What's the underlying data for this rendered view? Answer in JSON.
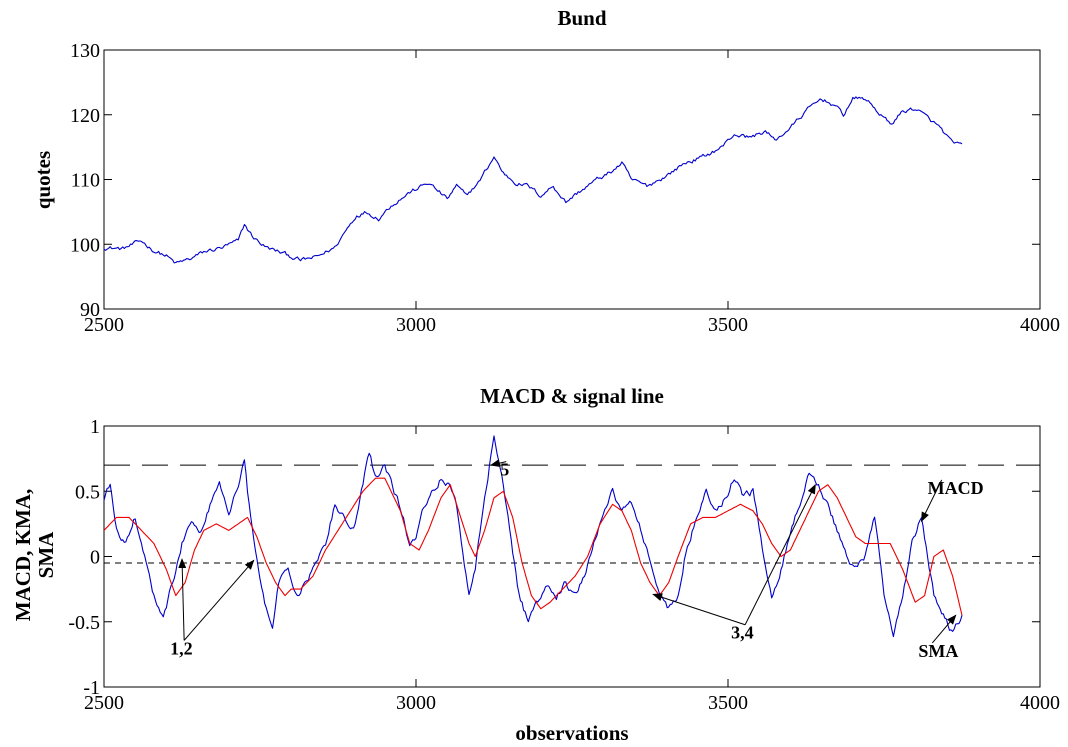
{
  "chart_data": [
    {
      "type": "line",
      "title": "Bund",
      "xlabel": "",
      "ylabel": "quotes",
      "xlim": [
        2500,
        4000
      ],
      "ylim": [
        90,
        130
      ],
      "xticks": [
        2500,
        3000,
        3500,
        4000
      ],
      "yticks": [
        90,
        100,
        110,
        120,
        130
      ],
      "grid": false,
      "series": [
        {
          "color": "#0000cc",
          "x": [
            2500,
            2530,
            2560,
            2580,
            2600,
            2615,
            2640,
            2660,
            2690,
            2715,
            2725,
            2740,
            2760,
            2790,
            2815,
            2840,
            2870,
            2890,
            2905,
            2920,
            2940,
            2960,
            2990,
            3020,
            3050,
            3065,
            3080,
            3100,
            3125,
            3140,
            3160,
            3180,
            3200,
            3220,
            3240,
            3260,
            3290,
            3310,
            3330,
            3345,
            3370,
            3400,
            3430,
            3460,
            3490,
            3510,
            3535,
            3560,
            3575,
            3600,
            3630,
            3650,
            3670,
            3685,
            3700,
            3720,
            3740,
            3760,
            3780,
            3800,
            3820,
            3840,
            3860,
            3875
          ],
          "y": [
            99.5,
            99.3,
            100.5,
            99.0,
            98.2,
            97.0,
            97.8,
            98.8,
            99.5,
            100.5,
            103.0,
            101.0,
            99.5,
            98.5,
            97.5,
            98.0,
            99.5,
            102.5,
            104.5,
            105.0,
            104.0,
            106.0,
            108.0,
            109.5,
            107.0,
            109.0,
            107.5,
            109.5,
            113.5,
            111.0,
            109.5,
            109.0,
            107.5,
            109.0,
            106.5,
            108.0,
            110.0,
            111.0,
            112.5,
            110.0,
            109.0,
            110.5,
            112.5,
            113.5,
            115.0,
            117.0,
            116.5,
            117.5,
            116.0,
            118.0,
            121.0,
            122.5,
            121.5,
            120.0,
            122.5,
            122.5,
            120.5,
            118.5,
            120.5,
            121.0,
            119.5,
            118.0,
            115.5,
            115.5
          ]
        }
      ]
    },
    {
      "type": "line",
      "title": "MACD & signal line",
      "xlabel": "observations",
      "ylabel": "MACD, KMA,\nSMA",
      "xlim": [
        2500,
        4000
      ],
      "ylim": [
        -1,
        1
      ],
      "xticks": [
        2500,
        3000,
        3500,
        4000
      ],
      "yticks": [
        -1,
        -0.5,
        0,
        0.5,
        1
      ],
      "ytick_labels": [
        "-1",
        "-0.5",
        "0",
        "0.5",
        "1"
      ],
      "grid": false,
      "series": [
        {
          "name": "MACD",
          "color": "#0000cc",
          "x": [
            2500,
            2510,
            2520,
            2535,
            2550,
            2565,
            2580,
            2595,
            2610,
            2625,
            2640,
            2655,
            2670,
            2685,
            2700,
            2715,
            2725,
            2730,
            2740,
            2750,
            2760,
            2770,
            2780,
            2795,
            2810,
            2825,
            2840,
            2855,
            2870,
            2885,
            2900,
            2915,
            2925,
            2935,
            2950,
            2965,
            2980,
            2990,
            3000,
            3010,
            3025,
            3040,
            3055,
            3065,
            3075,
            3085,
            3095,
            3105,
            3115,
            3125,
            3135,
            3150,
            3165,
            3180,
            3195,
            3210,
            3225,
            3240,
            3255,
            3270,
            3285,
            3300,
            3315,
            3330,
            3345,
            3360,
            3375,
            3390,
            3405,
            3420,
            3435,
            3450,
            3465,
            3480,
            3495,
            3510,
            3525,
            3540,
            3550,
            3560,
            3570,
            3585,
            3600,
            3615,
            3630,
            3645,
            3660,
            3675,
            3690,
            3705,
            3720,
            3735,
            3750,
            3765,
            3780,
            3795,
            3810,
            3820,
            3830,
            3840,
            3850,
            3860,
            3870,
            3875
          ],
          "y": [
            0.45,
            0.55,
            0.2,
            0.1,
            0.3,
            0.0,
            -0.3,
            -0.45,
            -0.2,
            0.1,
            0.3,
            0.2,
            0.4,
            0.6,
            0.3,
            0.55,
            0.75,
            0.5,
            0.1,
            -0.2,
            -0.4,
            -0.55,
            -0.2,
            -0.1,
            -0.3,
            -0.2,
            -0.05,
            0.1,
            0.4,
            0.3,
            0.2,
            0.55,
            0.8,
            0.6,
            0.7,
            0.5,
            0.3,
            0.1,
            0.15,
            0.35,
            0.5,
            0.6,
            0.55,
            0.4,
            0.0,
            -0.3,
            -0.1,
            0.3,
            0.6,
            0.95,
            0.7,
            0.2,
            -0.3,
            -0.5,
            -0.35,
            -0.2,
            -0.3,
            -0.2,
            -0.3,
            -0.15,
            0.1,
            0.3,
            0.5,
            0.35,
            0.4,
            0.2,
            0.0,
            -0.3,
            -0.4,
            -0.3,
            0.1,
            0.3,
            0.5,
            0.35,
            0.45,
            0.6,
            0.45,
            0.5,
            0.2,
            -0.1,
            -0.3,
            -0.1,
            0.2,
            0.4,
            0.65,
            0.55,
            0.4,
            0.2,
            0.0,
            -0.1,
            0.0,
            0.3,
            -0.3,
            -0.6,
            -0.3,
            0.1,
            0.3,
            0.0,
            -0.3,
            -0.4,
            -0.5,
            -0.6,
            -0.5,
            -0.45
          ]
        },
        {
          "name": "SMA",
          "color": "#ee0000",
          "x": [
            2500,
            2520,
            2540,
            2560,
            2580,
            2600,
            2615,
            2630,
            2645,
            2660,
            2680,
            2700,
            2715,
            2730,
            2745,
            2760,
            2775,
            2790,
            2800,
            2815,
            2835,
            2855,
            2875,
            2895,
            2915,
            2935,
            2950,
            2960,
            2975,
            2990,
            3005,
            3020,
            3040,
            3055,
            3065,
            3075,
            3085,
            3095,
            3110,
            3125,
            3140,
            3155,
            3170,
            3185,
            3200,
            3215,
            3235,
            3255,
            3275,
            3295,
            3315,
            3330,
            3345,
            3360,
            3375,
            3390,
            3405,
            3420,
            3440,
            3460,
            3480,
            3500,
            3520,
            3540,
            3555,
            3570,
            3585,
            3600,
            3615,
            3630,
            3645,
            3660,
            3675,
            3690,
            3705,
            3720,
            3740,
            3760,
            3780,
            3800,
            3815,
            3830,
            3845,
            3860,
            3875
          ],
          "y": [
            0.2,
            0.3,
            0.3,
            0.2,
            0.1,
            -0.1,
            -0.3,
            -0.2,
            0.05,
            0.2,
            0.25,
            0.2,
            0.25,
            0.3,
            0.15,
            -0.05,
            -0.2,
            -0.3,
            -0.25,
            -0.25,
            -0.15,
            0.05,
            0.2,
            0.35,
            0.5,
            0.6,
            0.6,
            0.5,
            0.35,
            0.1,
            0.05,
            0.2,
            0.45,
            0.55,
            0.4,
            0.25,
            0.1,
            0.0,
            0.2,
            0.45,
            0.5,
            0.3,
            -0.05,
            -0.3,
            -0.4,
            -0.35,
            -0.25,
            -0.15,
            0.0,
            0.25,
            0.4,
            0.35,
            0.2,
            -0.05,
            -0.2,
            -0.3,
            -0.2,
            0.0,
            0.25,
            0.3,
            0.3,
            0.35,
            0.4,
            0.35,
            0.25,
            0.1,
            0.0,
            0.05,
            0.2,
            0.35,
            0.5,
            0.55,
            0.45,
            0.3,
            0.15,
            0.1,
            0.1,
            0.1,
            -0.1,
            -0.35,
            -0.3,
            0.0,
            0.05,
            -0.15,
            -0.45
          ]
        }
      ],
      "reference_lines": [
        {
          "y": 0.7,
          "style": "long-dash",
          "color": "#000000"
        },
        {
          "y": -0.05,
          "style": "short-dash",
          "color": "#000000"
        }
      ],
      "annotations": [
        {
          "text": "5",
          "x": 3135,
          "y": 0.62,
          "arrow_to": [
            3120,
            0.7
          ]
        },
        {
          "text": "MACD",
          "x": 3820,
          "y": 0.48,
          "arrow_to": [
            3810,
            0.27
          ]
        },
        {
          "text": "1,2",
          "x": 2606,
          "y": -0.75,
          "arrow_to": [
            [
              2625,
              -0.02
            ],
            [
              2740,
              -0.03
            ]
          ]
        },
        {
          "text": "3,4",
          "x": 3505,
          "y": -0.63,
          "arrow_to": [
            [
              3380,
              -0.29
            ],
            [
              3640,
              0.55
            ]
          ]
        },
        {
          "text": "SMA",
          "x": 3805,
          "y": -0.77,
          "arrow_to": [
            3865,
            -0.45
          ]
        }
      ]
    }
  ]
}
